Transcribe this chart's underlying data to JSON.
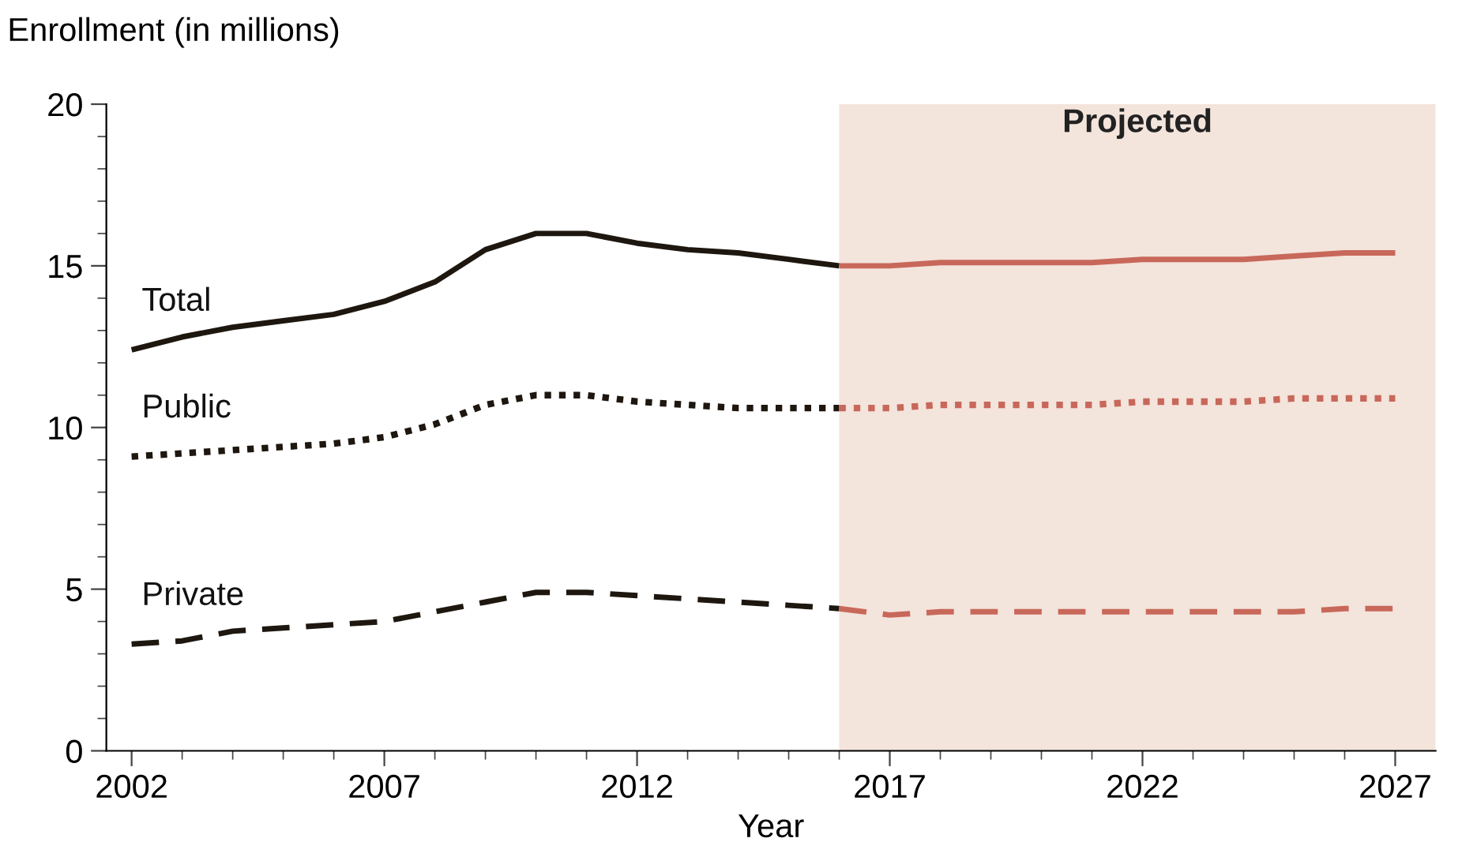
{
  "chart_data": {
    "type": "line",
    "xlabel": "Year",
    "ylabel": "Enrollment (in millions)",
    "xlim": [
      2001.5,
      2027.8
    ],
    "ylim": [
      0,
      20
    ],
    "xticks": [
      2002,
      {
        "value": 2003,
        "label": null
      },
      {
        "value": 2004,
        "label": null
      },
      {
        "value": 2005,
        "label": null
      },
      {
        "value": 2006,
        "label": null
      },
      2007,
      {
        "value": 2008,
        "label": null
      },
      {
        "value": 2009,
        "label": null
      },
      {
        "value": 2010,
        "label": null
      },
      {
        "value": 2011,
        "label": null
      },
      2012,
      {
        "value": 2013,
        "label": null
      },
      {
        "value": 2014,
        "label": null
      },
      {
        "value": 2015,
        "label": null
      },
      {
        "value": 2016,
        "label": null
      },
      2017,
      {
        "value": 2018,
        "label": null
      },
      {
        "value": 2019,
        "label": null
      },
      {
        "value": 2020,
        "label": null
      },
      {
        "value": 2021,
        "label": null
      },
      2022,
      {
        "value": 2023,
        "label": null
      },
      {
        "value": 2024,
        "label": null
      },
      {
        "value": 2025,
        "label": null
      },
      {
        "value": 2026,
        "label": null
      },
      2027
    ],
    "yticks": [
      0,
      {
        "value": 1,
        "label": null
      },
      {
        "value": 2,
        "label": null
      },
      {
        "value": 3,
        "label": null
      },
      {
        "value": 4,
        "label": null
      },
      5,
      {
        "value": 6,
        "label": null
      },
      {
        "value": 7,
        "label": null
      },
      {
        "value": 8,
        "label": null
      },
      {
        "value": 9,
        "label": null
      },
      10,
      {
        "value": 11,
        "label": null
      },
      {
        "value": 12,
        "label": null
      },
      {
        "value": 13,
        "label": null
      },
      {
        "value": 14,
        "label": null
      },
      15,
      {
        "value": 16,
        "label": null
      },
      {
        "value": 17,
        "label": null
      },
      {
        "value": 18,
        "label": null
      },
      {
        "value": 19,
        "label": null
      },
      20
    ],
    "grid": false,
    "legend": false,
    "marker": "none",
    "bands": [
      {
        "axis": "x",
        "from": 2016,
        "to": 2027.8,
        "label": "Projected",
        "color": "#f3e4dc"
      }
    ],
    "series": [
      {
        "name": "Total",
        "color": "#1e170f",
        "line_style": "solid",
        "x": [
          2002,
          2003,
          2004,
          2005,
          2006,
          2007,
          2008,
          2009,
          2010,
          2011,
          2012,
          2013,
          2014,
          2015,
          2016
        ],
        "values": [
          12.4,
          12.8,
          13.1,
          13.3,
          13.5,
          13.9,
          14.5,
          15.5,
          16.0,
          16.0,
          15.7,
          15.5,
          15.4,
          15.2,
          15.0
        ]
      },
      {
        "name": "Public",
        "color": "#1e170f",
        "line_style": "dotted",
        "x": [
          2002,
          2003,
          2004,
          2005,
          2006,
          2007,
          2008,
          2009,
          2010,
          2011,
          2012,
          2013,
          2014,
          2015,
          2016
        ],
        "values": [
          9.1,
          9.2,
          9.3,
          9.4,
          9.5,
          9.7,
          10.1,
          10.7,
          11.0,
          11.0,
          10.8,
          10.7,
          10.6,
          10.6,
          10.6
        ]
      },
      {
        "name": "Private",
        "color": "#1e170f",
        "line_style": "dashed",
        "x": [
          2002,
          2003,
          2004,
          2005,
          2006,
          2007,
          2008,
          2009,
          2010,
          2011,
          2012,
          2013,
          2014,
          2015,
          2016
        ],
        "values": [
          3.3,
          3.4,
          3.7,
          3.8,
          3.9,
          4.0,
          4.3,
          4.6,
          4.9,
          4.9,
          4.8,
          4.7,
          4.6,
          4.5,
          4.4
        ]
      },
      {
        "color": "#c8685a",
        "line_style": "solid",
        "x": [
          2016,
          2017,
          2018,
          2019,
          2020,
          2021,
          2022,
          2023,
          2024,
          2025,
          2026,
          2027
        ],
        "values": [
          15.0,
          15.0,
          15.1,
          15.1,
          15.1,
          15.1,
          15.2,
          15.2,
          15.2,
          15.3,
          15.4,
          15.4
        ]
      },
      {
        "color": "#c8685a",
        "line_style": "dotted",
        "x": [
          2016,
          2017,
          2018,
          2019,
          2020,
          2021,
          2022,
          2023,
          2024,
          2025,
          2026,
          2027
        ],
        "values": [
          10.6,
          10.6,
          10.7,
          10.7,
          10.7,
          10.7,
          10.8,
          10.8,
          10.8,
          10.9,
          10.9,
          10.9
        ]
      },
      {
        "color": "#c8685a",
        "line_style": "dashed",
        "x": [
          2016,
          2017,
          2018,
          2019,
          2020,
          2021,
          2022,
          2023,
          2024,
          2025,
          2026,
          2027
        ],
        "values": [
          4.4,
          4.2,
          4.3,
          4.3,
          4.3,
          4.3,
          4.3,
          4.3,
          4.3,
          4.3,
          4.4,
          4.4
        ]
      }
    ]
  }
}
